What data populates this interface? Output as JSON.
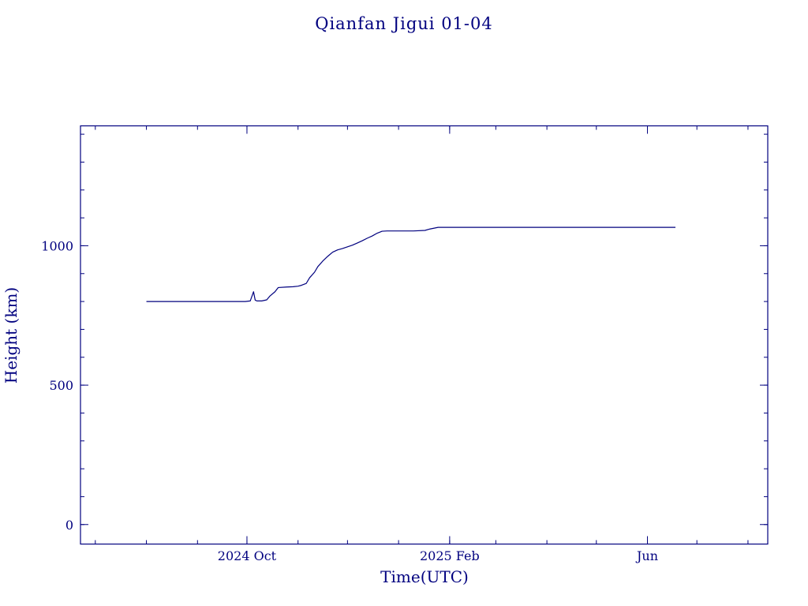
{
  "chart_data": {
    "type": "line",
    "title": "Qianfan Jigui 01-04",
    "xlabel": "Time(UTC)",
    "ylabel": "Height (km)",
    "x_unit": "date",
    "xlim": [
      "2024-06-22",
      "2025-08-13"
    ],
    "ylim": [
      -70,
      1430
    ],
    "x_tick_labels": [
      {
        "label": "2024 Oct",
        "value": "2024-10-01"
      },
      {
        "label": "2025 Feb",
        "value": "2025-02-01"
      },
      {
        "label": "Jun",
        "value": "2025-06-01"
      }
    ],
    "y_ticks": [
      0,
      500,
      1000
    ],
    "grid": false,
    "legend": "none",
    "colors": {
      "axes": "#00007f",
      "series": "#00007f",
      "background": "#ffffff"
    },
    "series": [
      {
        "x": [
          "2024-08-01",
          "2024-08-16",
          "2024-08-31",
          "2024-09-15",
          "2024-09-30",
          "2024-10-03",
          "2024-10-05",
          "2024-10-06",
          "2024-10-07",
          "2024-10-10",
          "2024-10-13",
          "2024-10-15",
          "2024-10-18",
          "2024-10-20",
          "2024-10-25",
          "2024-10-29",
          "2024-11-01",
          "2024-11-03",
          "2024-11-06",
          "2024-11-08",
          "2024-11-11",
          "2024-11-13",
          "2024-11-16",
          "2024-11-19",
          "2024-11-22",
          "2024-11-25",
          "2024-11-28",
          "2024-12-01",
          "2024-12-04",
          "2024-12-07",
          "2024-12-10",
          "2024-12-13",
          "2024-12-16",
          "2024-12-19",
          "2024-12-22",
          "2024-12-25",
          "2024-12-28",
          "2024-12-31",
          "2025-01-03",
          "2025-01-10",
          "2025-01-17",
          "2025-01-20",
          "2025-01-25",
          "2025-02-08",
          "2025-03-01",
          "2025-04-01",
          "2025-05-01",
          "2025-06-01",
          "2025-06-18"
        ],
        "y": [
          800,
          800,
          800,
          800,
          800,
          802,
          835,
          805,
          802,
          802,
          806,
          820,
          835,
          850,
          852,
          853,
          855,
          858,
          865,
          885,
          905,
          925,
          945,
          962,
          977,
          985,
          990,
          996,
          1002,
          1010,
          1018,
          1027,
          1035,
          1045,
          1052,
          1053,
          1053,
          1053,
          1053,
          1053,
          1055,
          1060,
          1066,
          1066,
          1066,
          1066,
          1066,
          1066,
          1066
        ]
      }
    ]
  }
}
